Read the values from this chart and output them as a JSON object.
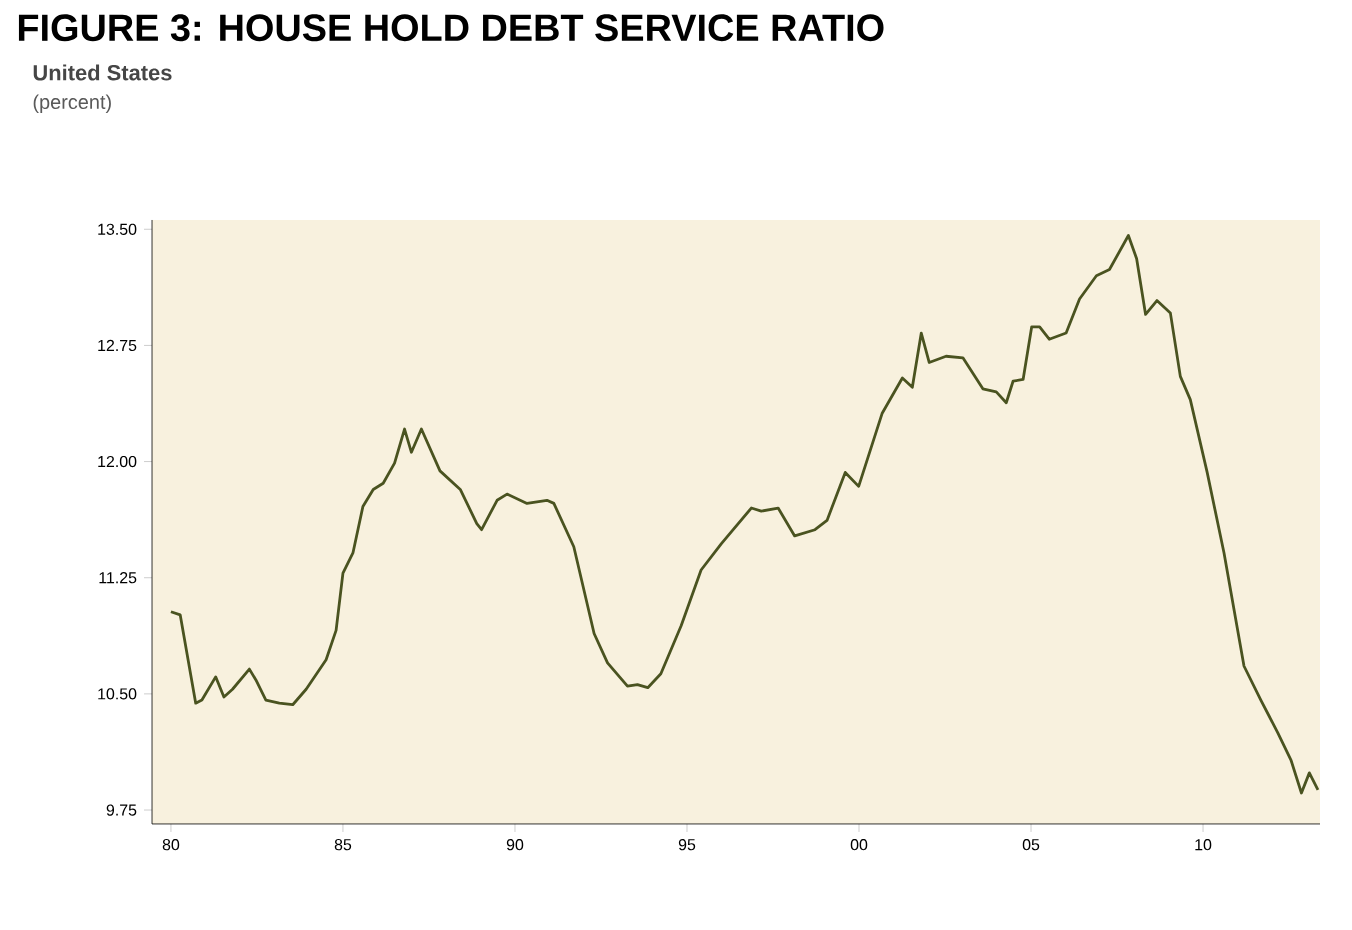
{
  "chart_data": {
    "type": "line",
    "title": "FIGURE 3: HOUSE HOLD DEBT SERVICE RATIO",
    "subtitle": "United States",
    "annotations": [
      "(percent)"
    ],
    "xlim": [
      1979.45,
      2013.4
    ],
    "ylim": [
      9.66,
      13.56
    ],
    "xticks": [
      {
        "value": 1980,
        "label": "80"
      },
      {
        "value": 1985,
        "label": "85"
      },
      {
        "value": 1990,
        "label": "90"
      },
      {
        "value": 1995,
        "label": "95"
      },
      {
        "value": 2000,
        "label": "00"
      },
      {
        "value": 2005,
        "label": "05"
      },
      {
        "value": 2010,
        "label": "10"
      }
    ],
    "yticks": [
      {
        "value": 9.75,
        "label": "9.75"
      },
      {
        "value": 10.5,
        "label": "10.50"
      },
      {
        "value": 11.25,
        "label": "11.25"
      },
      {
        "value": 12.0,
        "label": "12.00"
      },
      {
        "value": 12.75,
        "label": "12.75"
      },
      {
        "value": 13.5,
        "label": "13.50"
      }
    ],
    "grid": false,
    "legend": false,
    "marker": "none",
    "line_style": "solid",
    "series": [
      {
        "color": "#4a5320",
        "x": [
          1980.0,
          1980.27,
          1980.72,
          1980.9,
          1981.3,
          1981.54,
          1981.79,
          1982.28,
          1982.47,
          1982.76,
          1983.15,
          1983.54,
          1983.93,
          1984.51,
          1984.8,
          1985.0,
          1985.29,
          1985.58,
          1985.88,
          1986.17,
          1986.5,
          1986.79,
          1986.99,
          1987.28,
          1987.82,
          1988.41,
          1988.89,
          1989.03,
          1989.48,
          1989.77,
          1990.35,
          1990.93,
          1991.13,
          1991.71,
          1992.3,
          1992.69,
          1993.27,
          1993.56,
          1993.86,
          1994.24,
          1994.83,
          1995.41,
          1996.0,
          1996.87,
          1997.16,
          1997.65,
          1998.13,
          1998.72,
          1999.07,
          1999.6,
          1999.99,
          2000.67,
          2001.26,
          2001.55,
          2001.81,
          2002.04,
          2002.53,
          2003.02,
          2003.6,
          2003.99,
          2004.28,
          2004.48,
          2004.77,
          2005.02,
          2005.25,
          2005.53,
          2006.02,
          2006.41,
          2006.9,
          2007.28,
          2007.83,
          2008.07,
          2008.33,
          2008.66,
          2009.05,
          2009.34,
          2009.63,
          2010.12,
          2010.61,
          2011.19,
          2011.68,
          2012.17,
          2012.56,
          2012.86,
          2013.09,
          2013.34
        ],
        "values": [
          11.03,
          11.01,
          10.44,
          10.46,
          10.61,
          10.48,
          10.53,
          10.66,
          10.59,
          10.46,
          10.44,
          10.43,
          10.53,
          10.72,
          10.91,
          11.28,
          11.41,
          11.71,
          11.82,
          11.86,
          11.99,
          12.21,
          12.06,
          12.21,
          11.94,
          11.82,
          11.6,
          11.56,
          11.75,
          11.79,
          11.73,
          11.75,
          11.73,
          11.45,
          10.89,
          10.7,
          10.55,
          10.56,
          10.54,
          10.63,
          10.94,
          11.3,
          11.47,
          11.7,
          11.68,
          11.7,
          11.52,
          11.56,
          11.62,
          11.93,
          11.84,
          12.31,
          12.54,
          12.48,
          12.83,
          12.64,
          12.68,
          12.67,
          12.47,
          12.45,
          12.38,
          12.52,
          12.53,
          12.87,
          12.87,
          12.79,
          12.83,
          13.05,
          13.2,
          13.24,
          13.46,
          13.31,
          12.95,
          13.04,
          12.96,
          12.55,
          12.4,
          11.93,
          11.41,
          10.68,
          10.46,
          10.25,
          10.07,
          9.86,
          9.99,
          9.88
        ]
      }
    ]
  }
}
